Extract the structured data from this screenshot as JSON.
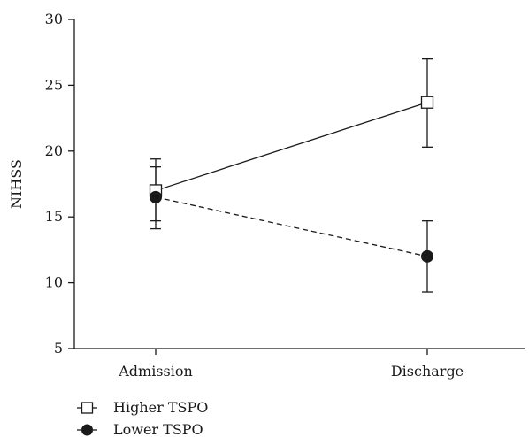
{
  "chart_data": {
    "type": "line",
    "xlabel": "",
    "ylabel": "NIHSS",
    "categories": [
      "Admission",
      "Discharge"
    ],
    "yticks": [
      5,
      10,
      15,
      20,
      25,
      30
    ],
    "ylim": [
      5,
      30
    ],
    "grid": false,
    "legend_position": "bottom-left",
    "series": [
      {
        "name": "Higher TSPO",
        "marker": "open-square",
        "line_style": "solid",
        "values": [
          17.0,
          23.7
        ],
        "error_low": [
          14.7,
          20.3
        ],
        "error_high": [
          19.4,
          27.0
        ]
      },
      {
        "name": "Lower TSPO",
        "marker": "filled-circle",
        "line_style": "dashed",
        "values": [
          16.5,
          12.0
        ],
        "error_low": [
          14.1,
          9.3
        ],
        "error_high": [
          18.8,
          14.7
        ]
      }
    ]
  }
}
